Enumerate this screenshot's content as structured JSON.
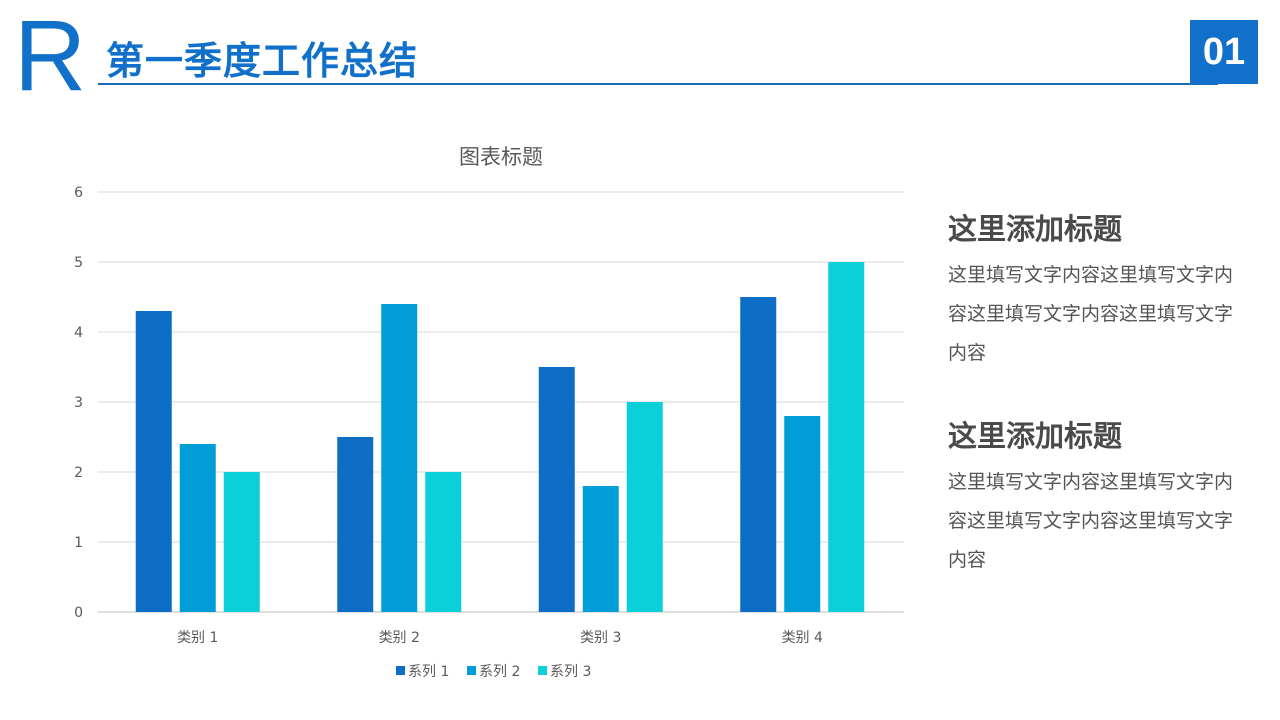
{
  "header": {
    "logo_letter": "R",
    "title": "第一季度工作总结",
    "page_number": "01"
  },
  "chart_data": {
    "type": "bar",
    "title": "图表标题",
    "categories": [
      "类别 1",
      "类别 2",
      "类别 3",
      "类别 4"
    ],
    "series": [
      {
        "name": "系列 1",
        "values": [
          4.3,
          2.5,
          3.5,
          4.5
        ],
        "color": "#0E6EC5"
      },
      {
        "name": "系列 2",
        "values": [
          2.4,
          4.4,
          1.8,
          2.8
        ],
        "color": "#009DD9"
      },
      {
        "name": "系列 3",
        "values": [
          2,
          2,
          3,
          5
        ],
        "color": "#0BD0D9"
      }
    ],
    "ylim": [
      0,
      6
    ],
    "yticks": [
      0,
      1,
      2,
      3,
      4,
      5,
      6
    ],
    "grid": true,
    "legend": "bottom"
  },
  "side": [
    {
      "heading": "这里添加标题",
      "body": "这里填写文字内容这里填写文字内容这里填写文字内容这里填写文字内容"
    },
    {
      "heading": "这里添加标题",
      "body": "这里填写文字内容这里填写文字内容这里填写文字内容这里填写文字内容"
    }
  ]
}
